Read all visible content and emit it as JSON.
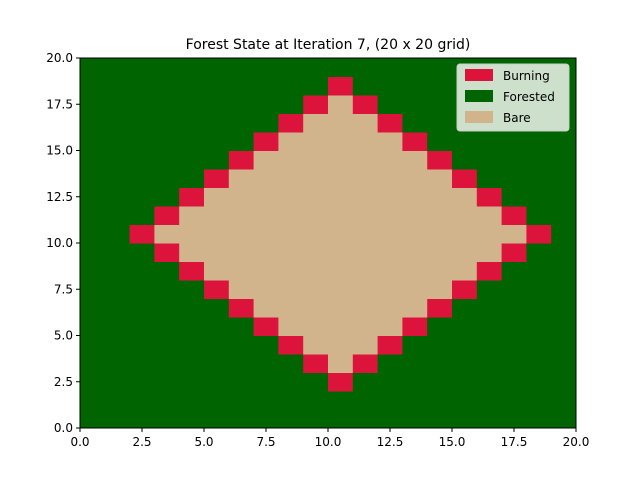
{
  "chart_data": {
    "type": "heatmap",
    "title": "Forest State at Iteration 7, (20 x 20 grid)",
    "xlabel": "",
    "ylabel": "",
    "xlim": [
      0,
      20
    ],
    "ylim": [
      0,
      20
    ],
    "grid_size": 20,
    "x_ticks": [
      "0.0",
      "2.5",
      "5.0",
      "7.5",
      "10.0",
      "12.5",
      "15.0",
      "17.5",
      "20.0"
    ],
    "y_ticks": [
      "0.0",
      "2.5",
      "5.0",
      "7.5",
      "10.0",
      "12.5",
      "15.0",
      "17.5",
      "20.0"
    ],
    "grid_on": false,
    "legend_position": "top-right",
    "legend": [
      {
        "name": "Burning",
        "state": "burning",
        "color": "#dc143c"
      },
      {
        "name": "Forested",
        "state": "forested",
        "color": "#006400"
      },
      {
        "name": "Bare",
        "state": "bare",
        "color": "#d2b48c"
      }
    ],
    "fire_center": [
      10,
      10
    ],
    "burning_distance": 8,
    "bare_max_distance": 7,
    "default_state": "forested",
    "note_states": "cell (col,row): distance=|col-10|+|row-10|; 8 => burning, <8 => bare, else forested"
  }
}
